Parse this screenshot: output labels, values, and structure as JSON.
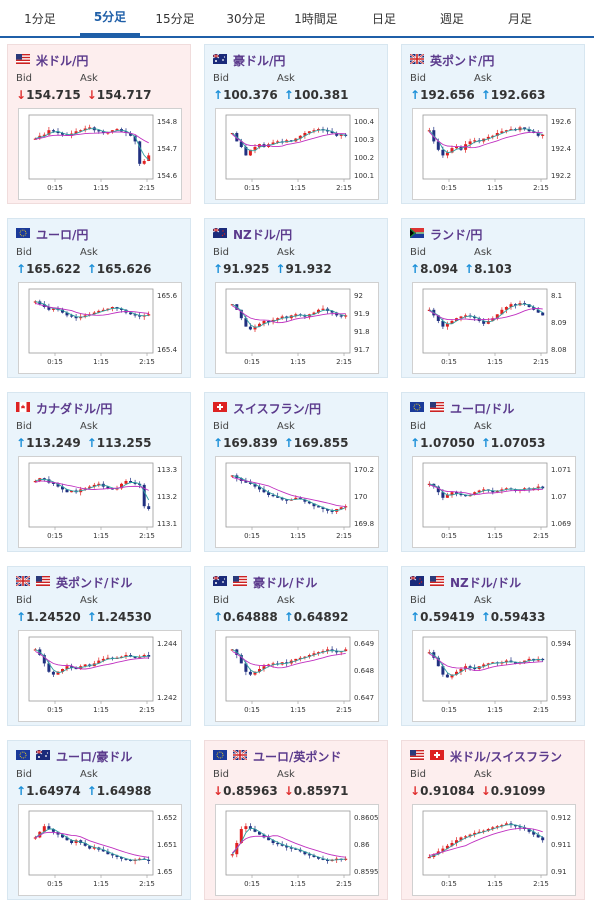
{
  "tabs": [
    {
      "label": "1分足",
      "active": false
    },
    {
      "label": "5分足",
      "active": true
    },
    {
      "label": "15分足",
      "active": false
    },
    {
      "label": "30分足",
      "active": false
    },
    {
      "label": "1時間足",
      "active": false
    },
    {
      "label": "日足",
      "active": false
    },
    {
      "label": "週足",
      "active": false
    },
    {
      "label": "月足",
      "active": false
    }
  ],
  "bid_label": "Bid",
  "ask_label": "Ask",
  "colors": {
    "up_arrow": "#1a8fd8",
    "down_arrow": "#e03030",
    "up_bg": "#eaf4fb",
    "down_bg": "#fdeeee",
    "title": "#5b3a8c",
    "candle_up": "#e02020",
    "candle_down": "#203080",
    "ma_short": "#30a0a0",
    "ma_long": "#c030c0"
  },
  "cards": [
    {
      "pair": "米ドル/円",
      "flag": "us",
      "direction": "down",
      "bid": "154.715",
      "ask": "154.717",
      "ylabels": [
        "154.8",
        "154.7",
        "154.6"
      ],
      "xlabels": [
        "0:15",
        "1:15",
        "2:15"
      ],
      "trend": [
        0.65,
        0.7,
        0.72,
        0.8,
        0.78,
        0.75,
        0.72,
        0.7,
        0.74,
        0.78,
        0.8,
        0.83,
        0.85,
        0.8,
        0.78,
        0.75,
        0.76,
        0.8,
        0.82,
        0.78,
        0.75,
        0.7,
        0.6,
        0.2,
        0.25,
        0.35
      ]
    },
    {
      "pair": "豪ドル/円",
      "flag": "au",
      "direction": "up",
      "bid": "100.376",
      "ask": "100.381",
      "ylabels": [
        "100.4",
        "100.3",
        "100.2",
        "100.1"
      ],
      "xlabels": [
        "0:15",
        "1:15",
        "2:15"
      ],
      "trend": [
        0.75,
        0.6,
        0.5,
        0.35,
        0.45,
        0.5,
        0.55,
        0.5,
        0.55,
        0.58,
        0.6,
        0.58,
        0.62,
        0.6,
        0.65,
        0.7,
        0.75,
        0.78,
        0.8,
        0.82,
        0.8,
        0.78,
        0.75,
        0.7,
        0.72,
        0.7
      ]
    },
    {
      "pair": "英ポンド/円",
      "flag": "uk",
      "direction": "up",
      "bid": "192.656",
      "ask": "192.663",
      "ylabels": [
        "192.6",
        "192.4",
        "192.2"
      ],
      "xlabels": [
        "0:15",
        "1:15",
        "2:15"
      ],
      "trend": [
        0.8,
        0.6,
        0.45,
        0.35,
        0.4,
        0.48,
        0.5,
        0.45,
        0.55,
        0.6,
        0.62,
        0.6,
        0.65,
        0.68,
        0.7,
        0.75,
        0.78,
        0.8,
        0.82,
        0.8,
        0.85,
        0.82,
        0.78,
        0.75,
        0.7,
        0.72
      ]
    },
    {
      "pair": "ユーロ/円",
      "flag": "eu",
      "direction": "up",
      "bid": "165.622",
      "ask": "165.626",
      "ylabels": [
        "165.6",
        "165.4"
      ],
      "xlabels": [
        "0:15",
        "1:15",
        "2:15"
      ],
      "trend": [
        0.85,
        0.8,
        0.75,
        0.7,
        0.72,
        0.7,
        0.65,
        0.6,
        0.58,
        0.55,
        0.58,
        0.6,
        0.62,
        0.65,
        0.68,
        0.7,
        0.72,
        0.75,
        0.72,
        0.7,
        0.65,
        0.62,
        0.6,
        0.58,
        0.6,
        0.62
      ]
    },
    {
      "pair": "NZドル/円",
      "flag": "nz",
      "direction": "up",
      "bid": "91.925",
      "ask": "91.932",
      "ylabels": [
        "92",
        "91.9",
        "91.8",
        "91.7"
      ],
      "xlabels": [
        "0:15",
        "1:15",
        "2:15"
      ],
      "trend": [
        0.8,
        0.7,
        0.55,
        0.4,
        0.35,
        0.4,
        0.45,
        0.5,
        0.48,
        0.52,
        0.55,
        0.58,
        0.55,
        0.6,
        0.62,
        0.6,
        0.58,
        0.62,
        0.65,
        0.7,
        0.72,
        0.68,
        0.65,
        0.6,
        0.58,
        0.6
      ]
    },
    {
      "pair": "ランド/円",
      "flag": "za",
      "direction": "up",
      "bid": "8.094",
      "ask": "8.103",
      "ylabels": [
        "8.1",
        "8.09",
        "8.08"
      ],
      "xlabels": [
        "0:15",
        "1:15",
        "2:15"
      ],
      "trend": [
        0.7,
        0.6,
        0.5,
        0.4,
        0.45,
        0.5,
        0.55,
        0.58,
        0.6,
        0.58,
        0.55,
        0.5,
        0.45,
        0.5,
        0.55,
        0.62,
        0.7,
        0.75,
        0.8,
        0.78,
        0.82,
        0.8,
        0.75,
        0.7,
        0.65,
        0.6
      ]
    },
    {
      "pair": "カナダドル/円",
      "flag": "ca",
      "direction": "up",
      "bid": "113.249",
      "ask": "113.255",
      "ylabels": [
        "113.3",
        "113.2",
        "113.1"
      ],
      "xlabels": [
        "0:15",
        "1:15",
        "2:15"
      ],
      "trend": [
        0.75,
        0.8,
        0.78,
        0.72,
        0.7,
        0.65,
        0.6,
        0.55,
        0.58,
        0.55,
        0.6,
        0.62,
        0.65,
        0.68,
        0.7,
        0.65,
        0.62,
        0.6,
        0.62,
        0.7,
        0.75,
        0.72,
        0.7,
        0.68,
        0.3,
        0.25
      ]
    },
    {
      "pair": "スイスフラン/円",
      "flag": "ch",
      "direction": "up",
      "bid": "169.839",
      "ask": "169.855",
      "ylabels": [
        "170.2",
        "170",
        "169.8"
      ],
      "xlabels": [
        "0:15",
        "1:15",
        "2:15"
      ],
      "trend": [
        0.85,
        0.8,
        0.75,
        0.72,
        0.7,
        0.65,
        0.6,
        0.55,
        0.5,
        0.48,
        0.45,
        0.42,
        0.4,
        0.42,
        0.45,
        0.42,
        0.38,
        0.35,
        0.3,
        0.28,
        0.25,
        0.22,
        0.2,
        0.25,
        0.28,
        0.3
      ]
    },
    {
      "pair": "ユーロ/ドル",
      "flag": "eu-us",
      "direction": "up",
      "bid": "1.07050",
      "ask": "1.07053",
      "ylabels": [
        "1.071",
        "1.07",
        "1.069"
      ],
      "xlabels": [
        "0:15",
        "1:15",
        "2:15"
      ],
      "trend": [
        0.7,
        0.65,
        0.55,
        0.45,
        0.5,
        0.55,
        0.52,
        0.5,
        0.48,
        0.5,
        0.55,
        0.58,
        0.6,
        0.58,
        0.55,
        0.58,
        0.6,
        0.62,
        0.6,
        0.58,
        0.6,
        0.62,
        0.6,
        0.62,
        0.65,
        0.62
      ]
    },
    {
      "pair": "英ポンド/ドル",
      "flag": "uk-us",
      "direction": "up",
      "bid": "1.24520",
      "ask": "1.24530",
      "ylabels": [
        "1.244",
        "1.242"
      ],
      "xlabels": [
        "0:15",
        "1:15",
        "2:15"
      ],
      "trend": [
        0.85,
        0.75,
        0.6,
        0.45,
        0.4,
        0.45,
        0.5,
        0.55,
        0.52,
        0.5,
        0.55,
        0.58,
        0.55,
        0.6,
        0.65,
        0.68,
        0.7,
        0.68,
        0.7,
        0.72,
        0.75,
        0.72,
        0.7,
        0.72,
        0.75,
        0.72
      ]
    },
    {
      "pair": "豪ドル/ドル",
      "flag": "au-us",
      "direction": "up",
      "bid": "0.64888",
      "ask": "0.64892",
      "ylabels": [
        "0.649",
        "0.648",
        "0.647"
      ],
      "xlabels": [
        "0:15",
        "1:15",
        "2:15"
      ],
      "trend": [
        0.85,
        0.75,
        0.6,
        0.45,
        0.4,
        0.45,
        0.5,
        0.55,
        0.58,
        0.6,
        0.58,
        0.62,
        0.6,
        0.65,
        0.68,
        0.7,
        0.72,
        0.75,
        0.78,
        0.8,
        0.82,
        0.85,
        0.82,
        0.8,
        0.82,
        0.85
      ]
    },
    {
      "pair": "NZドル/ドル",
      "flag": "nz-us",
      "direction": "up",
      "bid": "0.59419",
      "ask": "0.59433",
      "ylabels": [
        "0.594",
        "0.593"
      ],
      "xlabels": [
        "0:15",
        "1:15",
        "2:15"
      ],
      "trend": [
        0.8,
        0.7,
        0.55,
        0.4,
        0.35,
        0.4,
        0.45,
        0.5,
        0.55,
        0.52,
        0.5,
        0.55,
        0.58,
        0.6,
        0.62,
        0.6,
        0.62,
        0.65,
        0.62,
        0.6,
        0.62,
        0.65,
        0.68,
        0.65,
        0.68,
        0.66
      ]
    },
    {
      "pair": "ユーロ/豪ドル",
      "flag": "eu-au",
      "direction": "up",
      "bid": "1.64974",
      "ask": "1.64988",
      "ylabels": [
        "1.652",
        "1.651",
        "1.65"
      ],
      "xlabels": [
        "0:15",
        "1:15",
        "2:15"
      ],
      "trend": [
        0.6,
        0.7,
        0.8,
        0.75,
        0.7,
        0.65,
        0.6,
        0.55,
        0.5,
        0.55,
        0.5,
        0.45,
        0.4,
        0.42,
        0.38,
        0.35,
        0.3,
        0.28,
        0.25,
        0.22,
        0.2,
        0.18,
        0.2,
        0.22,
        0.2,
        0.18
      ]
    },
    {
      "pair": "ユーロ/英ポンド",
      "flag": "eu-uk",
      "direction": "down",
      "bid": "0.85963",
      "ask": "0.85971",
      "ylabels": [
        "0.8605",
        "0.86",
        "0.8595"
      ],
      "xlabels": [
        "0:15",
        "1:15",
        "2:15"
      ],
      "trend": [
        0.3,
        0.5,
        0.75,
        0.8,
        0.75,
        0.7,
        0.65,
        0.6,
        0.55,
        0.5,
        0.48,
        0.45,
        0.42,
        0.4,
        0.38,
        0.35,
        0.3,
        0.28,
        0.25,
        0.22,
        0.2,
        0.18,
        0.2,
        0.22,
        0.2,
        0.22
      ]
    },
    {
      "pair": "米ドル/スイスフラン",
      "flag": "us-ch",
      "direction": "down",
      "bid": "0.91084",
      "ask": "0.91099",
      "ylabels": [
        "0.912",
        "0.911",
        "0.91"
      ],
      "xlabels": [
        "0:15",
        "1:15",
        "2:15"
      ],
      "trend": [
        0.25,
        0.3,
        0.35,
        0.4,
        0.45,
        0.5,
        0.55,
        0.6,
        0.62,
        0.65,
        0.68,
        0.7,
        0.72,
        0.75,
        0.78,
        0.8,
        0.82,
        0.85,
        0.82,
        0.8,
        0.78,
        0.75,
        0.7,
        0.65,
        0.6,
        0.55
      ]
    }
  ]
}
